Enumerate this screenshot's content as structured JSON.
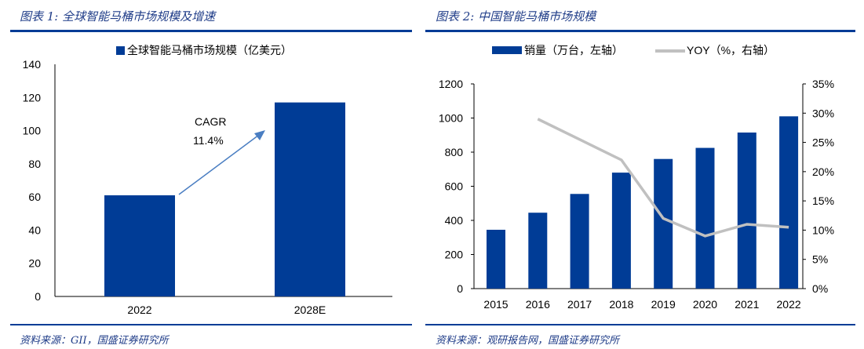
{
  "chart_data": [
    {
      "type": "bar",
      "title": "图表 1:  全球智能马桶市场规模及增速",
      "legend": "全球智能马桶市场规模（亿美元）",
      "categories": [
        "2022",
        "2028E"
      ],
      "values": [
        61,
        117
      ],
      "ylim": [
        0,
        140
      ],
      "yticks": [
        "0",
        "20",
        "40",
        "60",
        "80",
        "100",
        "120",
        "140"
      ],
      "annotation": {
        "line1": "CAGR",
        "line2": "11.4%"
      },
      "source": "资料来源：GII，国盛证券研究所",
      "color": "#003c96"
    },
    {
      "type": "bar+line",
      "title": "图表 2:  中国智能马桶市场规模",
      "categories": [
        "2015",
        "2016",
        "2017",
        "2018",
        "2019",
        "2020",
        "2021",
        "2022"
      ],
      "series": [
        {
          "name": "销量（万台，左轴）",
          "type": "bar",
          "values": [
            345,
            445,
            555,
            680,
            760,
            825,
            915,
            1010
          ],
          "color": "#003c96"
        },
        {
          "name": "YOY（%，右轴）",
          "type": "line",
          "values": [
            null,
            29,
            25.5,
            22,
            12,
            9,
            11,
            10.5
          ],
          "color": "#c0c0c0"
        }
      ],
      "ylim_left": [
        0,
        1200
      ],
      "yticks_left": [
        "0",
        "200",
        "400",
        "600",
        "800",
        "1000",
        "1200"
      ],
      "ylim_right": [
        0,
        35
      ],
      "yticks_right": [
        "0%",
        "5%",
        "10%",
        "15%",
        "20%",
        "25%",
        "30%",
        "35%"
      ],
      "source": "资料来源：观研报告网，国盛证券研究所"
    }
  ]
}
